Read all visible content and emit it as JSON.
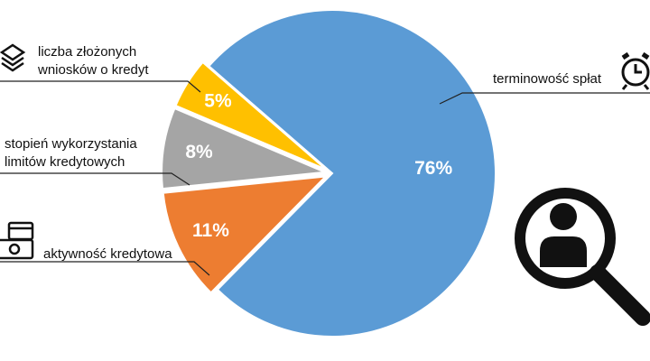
{
  "chart_data": {
    "type": "pie",
    "categories": [
      "terminowość spłat",
      "aktywność kredytowa",
      "stopień wykorzystania limitów kredytowych",
      "liczba złożonych wniosków o kredyt"
    ],
    "values": [
      76,
      11,
      8,
      5
    ],
    "value_labels": [
      "76%",
      "11%",
      "8%",
      "5%"
    ],
    "colors": [
      "#5b9bd5",
      "#ed7d31",
      "#a5a5a5",
      "#ffc000"
    ]
  }
}
